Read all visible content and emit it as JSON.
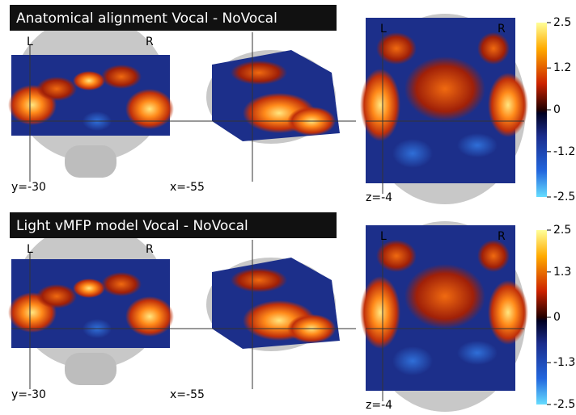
{
  "panels": [
    {
      "title": "Anatomical alignment Vocal - NoVocal",
      "coronal": {
        "left": "L",
        "right": "R",
        "coord": "y=-30"
      },
      "sagittal": {
        "coord": "x=-55"
      },
      "axial": {
        "left": "L",
        "right": "R",
        "coord": "z=-4"
      },
      "colorbar": {
        "lim": [
          -2.5,
          2.5
        ],
        "ticks": [
          2.5,
          1.2,
          0,
          -1.2,
          -2.5
        ]
      }
    },
    {
      "title": "Light vMFP model Vocal - NoVocal",
      "coronal": {
        "left": "L",
        "right": "R",
        "coord": "y=-30"
      },
      "sagittal": {
        "coord": "x=-55"
      },
      "axial": {
        "left": "L",
        "right": "R",
        "coord": "z=-4"
      },
      "colorbar": {
        "lim": [
          -2.5,
          2.5
        ],
        "ticks": [
          2.5,
          1.3,
          0,
          -1.3,
          -2.5
        ]
      }
    }
  ]
}
